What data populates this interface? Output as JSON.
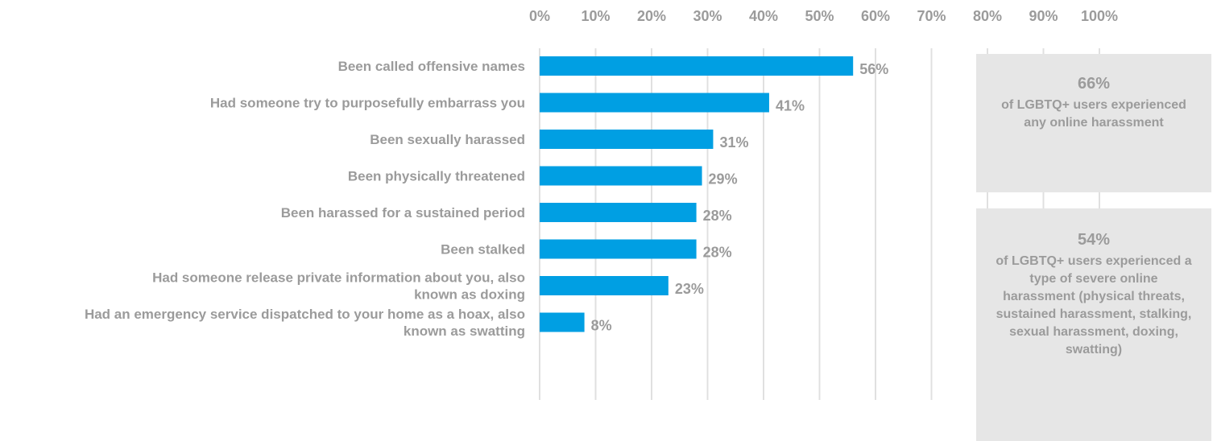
{
  "chart_data": {
    "type": "bar",
    "orientation": "horizontal",
    "categories": [
      [
        "Been called offensive names"
      ],
      [
        "Had someone try to purposefully embarrass you"
      ],
      [
        "Been sexually harassed"
      ],
      [
        "Been physically threatened"
      ],
      [
        "Been harassed for a sustained period"
      ],
      [
        "Been stalked"
      ],
      [
        "Had someone release private information about you, also",
        "known as doxing"
      ],
      [
        "Had an emergency service dispatched to your home as a hoax, also",
        "known as swatting"
      ]
    ],
    "values": [
      56,
      41,
      31,
      29,
      28,
      28,
      23,
      8
    ],
    "value_labels": [
      "56%",
      "41%",
      "31%",
      "29%",
      "28%",
      "28%",
      "23%",
      "8%"
    ],
    "xlim": [
      0,
      100
    ],
    "x_ticks": [
      "0%",
      "10%",
      "20%",
      "30%",
      "40%",
      "50%",
      "60%",
      "70%",
      "80%",
      "90%",
      "100%"
    ],
    "x_axis_position": "top",
    "grid": true,
    "bar_color": "#009fe3",
    "grid_color": "#e0e0e0",
    "text_color": "#9b9b9b"
  },
  "callouts": [
    {
      "big": "66%",
      "desc": "of LGBTQ+ users experienced any online harassment"
    },
    {
      "big": "54%",
      "desc": "of LGBTQ+ users experienced a type of severe online harassment (physical threats, sustained harassment, stalking, sexual harassment, doxing, swatting)"
    }
  ]
}
